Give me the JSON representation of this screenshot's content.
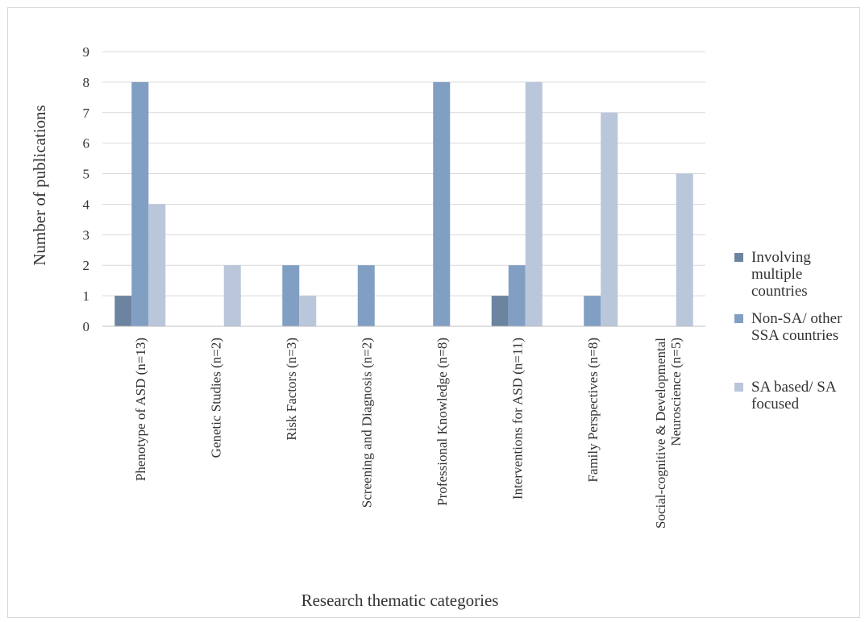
{
  "chart_data": {
    "type": "bar",
    "xlabel": "Research thematic categories",
    "ylabel": "Number of publications",
    "ylim": [
      0,
      9
    ],
    "yticks": [
      0,
      1,
      2,
      3,
      4,
      5,
      6,
      7,
      8,
      9
    ],
    "grid": true,
    "legend_position": "right",
    "categories": [
      [
        "Phenotype of ASD (n=13)"
      ],
      [
        "Genetic Studies (n=2)"
      ],
      [
        "Risk Factors (n=3)"
      ],
      [
        "Screening and Diagnosis (n=2)"
      ],
      [
        "Professional Knowledge (n=8)"
      ],
      [
        "Interventions for ASD (n=11)"
      ],
      [
        "Family Perspectives  (n=8)"
      ],
      [
        "Social-cognitive & Developmental",
        "Neuroscience (n=5)"
      ]
    ],
    "series": [
      {
        "name": "Involving multiple countries",
        "legend_lines": [
          "Involving",
          "multiple",
          "countries"
        ],
        "color": "#6d84a0",
        "values": [
          1,
          0,
          0,
          0,
          0,
          1,
          0,
          0
        ]
      },
      {
        "name": "Non-SA/ other SSA countries",
        "legend_lines": [
          "Non-SA/ other",
          "SSA countries"
        ],
        "color": "#819fc2",
        "values": [
          8,
          0,
          2,
          2,
          8,
          2,
          1,
          0
        ]
      },
      {
        "name": "SA based/ SA focused",
        "legend_lines": [
          "SA based/ SA",
          "focused"
        ],
        "color": "#bac6da",
        "values": [
          4,
          2,
          1,
          0,
          0,
          8,
          7,
          5
        ]
      }
    ],
    "colors": {
      "grid": "#d9d9d9",
      "axis": "#bfbfbf",
      "text": "#333333"
    }
  }
}
